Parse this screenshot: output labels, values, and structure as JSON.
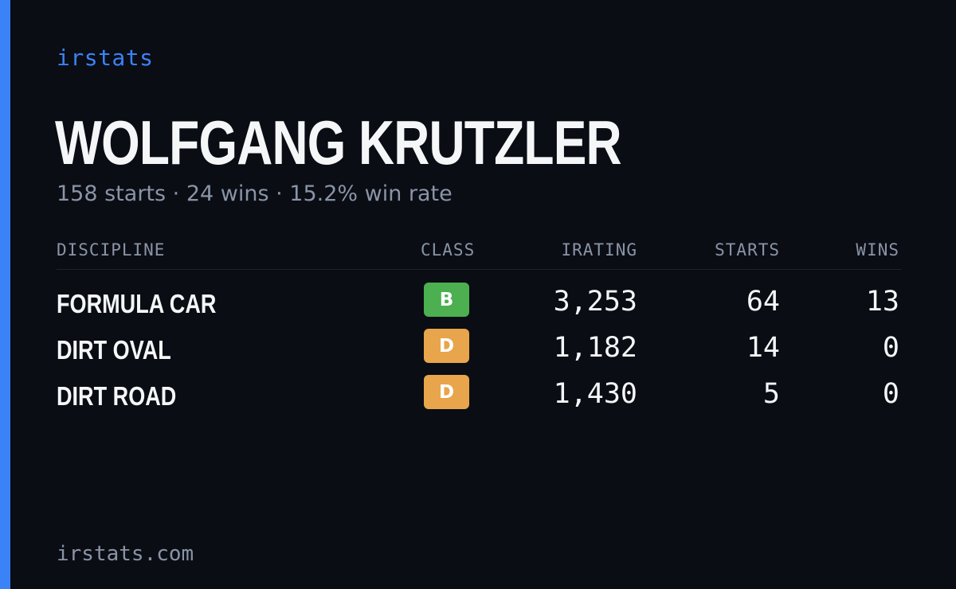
{
  "brand": "irstats",
  "driver": {
    "name": "WOLFGANG KRUTZLER",
    "summary": "158 starts · 24 wins · 15.2% win rate"
  },
  "table": {
    "headers": {
      "discipline": "DISCIPLINE",
      "class": "CLASS",
      "irating": "IRATING",
      "starts": "STARTS",
      "wins": "WINS"
    },
    "rows": [
      {
        "discipline": "FORMULA CAR",
        "class": "B",
        "class_color": "#4caf50",
        "irating": "3,253",
        "starts": "64",
        "wins": "13"
      },
      {
        "discipline": "DIRT OVAL",
        "class": "D",
        "class_color": "#e8a54b",
        "irating": "1,182",
        "starts": "14",
        "wins": "0"
      },
      {
        "discipline": "DIRT ROAD",
        "class": "D",
        "class_color": "#e8a54b",
        "irating": "1,430",
        "starts": "5",
        "wins": "0"
      }
    ]
  },
  "footer": "irstats.com",
  "colors": {
    "background": "#0a0d14",
    "accent": "#3b82f6",
    "text": "#f5f6f8",
    "muted": "#8a94a6"
  }
}
